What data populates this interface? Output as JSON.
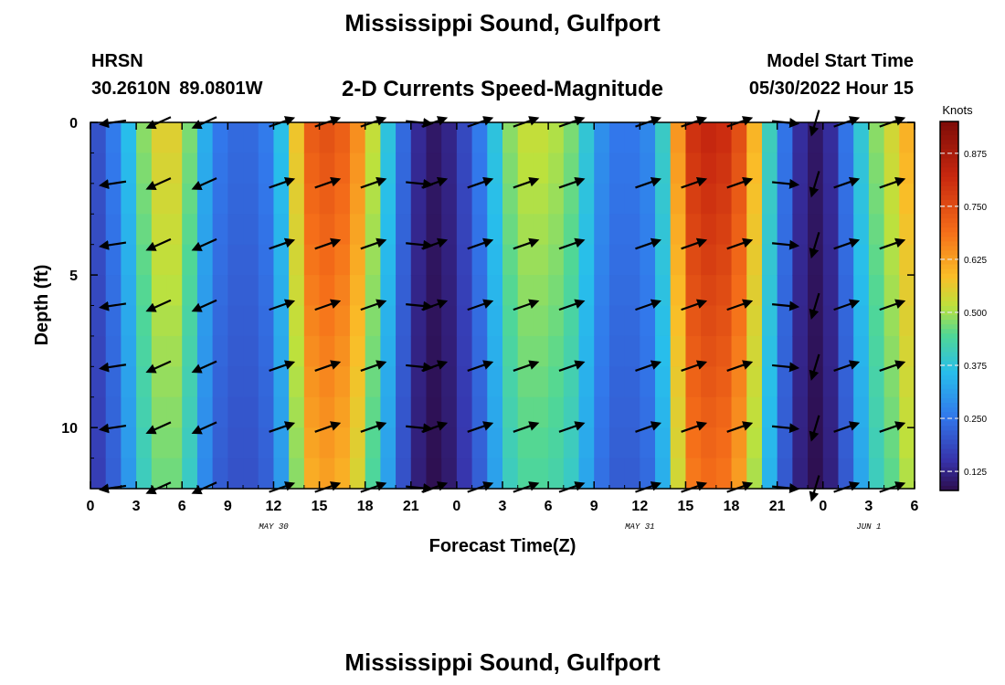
{
  "header": {
    "title": "Mississippi Sound, Gulfport",
    "station_id": "HRSN",
    "station_coords": "30.2610N  89.0801W",
    "chart_title": "2-D Currents Speed-Magnitude",
    "model_start_label": "Model Start Time",
    "model_start_value": "05/30/2022 Hour 15"
  },
  "footer": {
    "title": "Mississippi Sound, Gulfport"
  },
  "chart_data": {
    "type": "heatmap",
    "title": "2-D Currents Speed-Magnitude",
    "xlabel": "Forecast Time(Z)",
    "ylabel": "Depth (ft)",
    "x_range_hours": [
      0,
      54
    ],
    "y_range_ft": [
      0,
      12
    ],
    "y_ticks": [
      0,
      5,
      10
    ],
    "x_tick_labels": [
      "0",
      "3",
      "6",
      "9",
      "12",
      "15",
      "18",
      "21",
      "0",
      "3",
      "6",
      "9",
      "12",
      "15",
      "18",
      "21",
      "0",
      "3",
      "6"
    ],
    "date_labels": [
      {
        "text": "MAY 30",
        "hour": 12
      },
      {
        "text": "MAY 31",
        "hour": 36
      },
      {
        "text": "JUN 1",
        "hour": 51
      }
    ],
    "colorbar": {
      "label": "Knots",
      "range": [
        0.08,
        0.95
      ],
      "ticks": [
        "0.875",
        "0.750",
        "0.625",
        "0.500",
        "0.375",
        "0.250",
        "0.125"
      ],
      "tick_values": [
        0.875,
        0.75,
        0.625,
        0.5,
        0.375,
        0.25,
        0.125
      ]
    },
    "speed_profile": {
      "hours": [
        0,
        1,
        2,
        3,
        4,
        5,
        6,
        7,
        8,
        9,
        10,
        11,
        12,
        13,
        14,
        15,
        16,
        17,
        18,
        19,
        20,
        21,
        22,
        23,
        24,
        25,
        26,
        27,
        28,
        29,
        30,
        31,
        32,
        33,
        34,
        35,
        36,
        37,
        38,
        39,
        40,
        41,
        42,
        43,
        44,
        45,
        46,
        47,
        48,
        49,
        50,
        51,
        52,
        53,
        54
      ],
      "knots": [
        0.18,
        0.22,
        0.3,
        0.42,
        0.55,
        0.56,
        0.55,
        0.4,
        0.27,
        0.24,
        0.23,
        0.24,
        0.28,
        0.45,
        0.7,
        0.75,
        0.74,
        0.7,
        0.6,
        0.45,
        0.3,
        0.17,
        0.1,
        0.1,
        0.15,
        0.22,
        0.3,
        0.45,
        0.52,
        0.53,
        0.52,
        0.5,
        0.45,
        0.32,
        0.26,
        0.25,
        0.26,
        0.3,
        0.5,
        0.78,
        0.83,
        0.83,
        0.8,
        0.7,
        0.5,
        0.32,
        0.18,
        0.1,
        0.1,
        0.18,
        0.32,
        0.45,
        0.52,
        0.56,
        0.65
      ]
    },
    "vector_rows_ft": [
      0,
      2,
      4,
      6,
      8,
      10,
      12
    ],
    "vector_columns": [
      {
        "hour": 1.5,
        "dir": "W"
      },
      {
        "hour": 4.5,
        "dir": "WSW"
      },
      {
        "hour": 7.5,
        "dir": "WSW"
      },
      {
        "hour": 12.5,
        "dir": "ENE"
      },
      {
        "hour": 15.5,
        "dir": "ENE"
      },
      {
        "hour": 18.5,
        "dir": "ENE"
      },
      {
        "hour": 21.5,
        "dir": "E"
      },
      {
        "hour": 22.5,
        "dir": "ENE"
      },
      {
        "hour": 25.5,
        "dir": "ENE"
      },
      {
        "hour": 28.5,
        "dir": "ENE"
      },
      {
        "hour": 31.5,
        "dir": "ENE"
      },
      {
        "hour": 36.5,
        "dir": "ENE"
      },
      {
        "hour": 39.5,
        "dir": "ENE"
      },
      {
        "hour": 42.5,
        "dir": "ENE"
      },
      {
        "hour": 45.5,
        "dir": "E"
      },
      {
        "hour": 47.5,
        "dir": "SSW"
      },
      {
        "hour": 49.5,
        "dir": "ENE"
      },
      {
        "hour": 52.5,
        "dir": "ENE"
      }
    ]
  }
}
